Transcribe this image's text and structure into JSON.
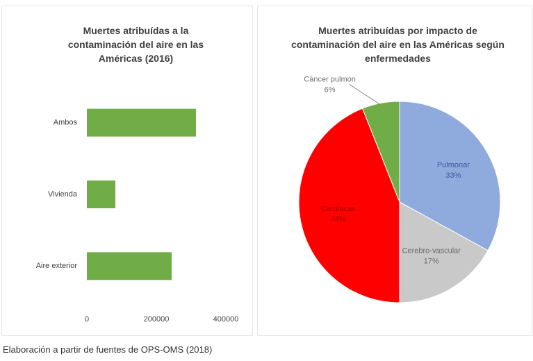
{
  "chart_data": [
    {
      "type": "hbar",
      "title": "Muertes atribuídas a  la contaminación del aire en las Américas (2016)",
      "categories": [
        "Ambos",
        "Vivienda",
        "Aire exterior"
      ],
      "values": [
        314000,
        82000,
        244000
      ],
      "color": "#70ad47",
      "xlim": [
        0,
        400000
      ],
      "xticks": [
        0,
        200000,
        400000
      ],
      "grid": false
    },
    {
      "type": "pie",
      "title": "Muertes atribuídas por impacto de contaminación del aire en las Américas según enfermedades",
      "categories": [
        "Pulmonar",
        "Cerebro-vascular",
        "Cardiacas",
        "Cáncer pulmon"
      ],
      "values": [
        33,
        17,
        44,
        6
      ],
      "value_labels": [
        "33%",
        "17%",
        "44%",
        "6%"
      ],
      "colors": [
        "#8faadc",
        "#c9c9c9",
        "#ff0000",
        "#70ad47"
      ],
      "label_colors": [
        "#3a5a9a",
        "#6a6a6a",
        "#a00000",
        "#707070"
      ]
    }
  ],
  "caption": "Elaboración a  partir de  fuentes de OPS-OMS (2018)"
}
